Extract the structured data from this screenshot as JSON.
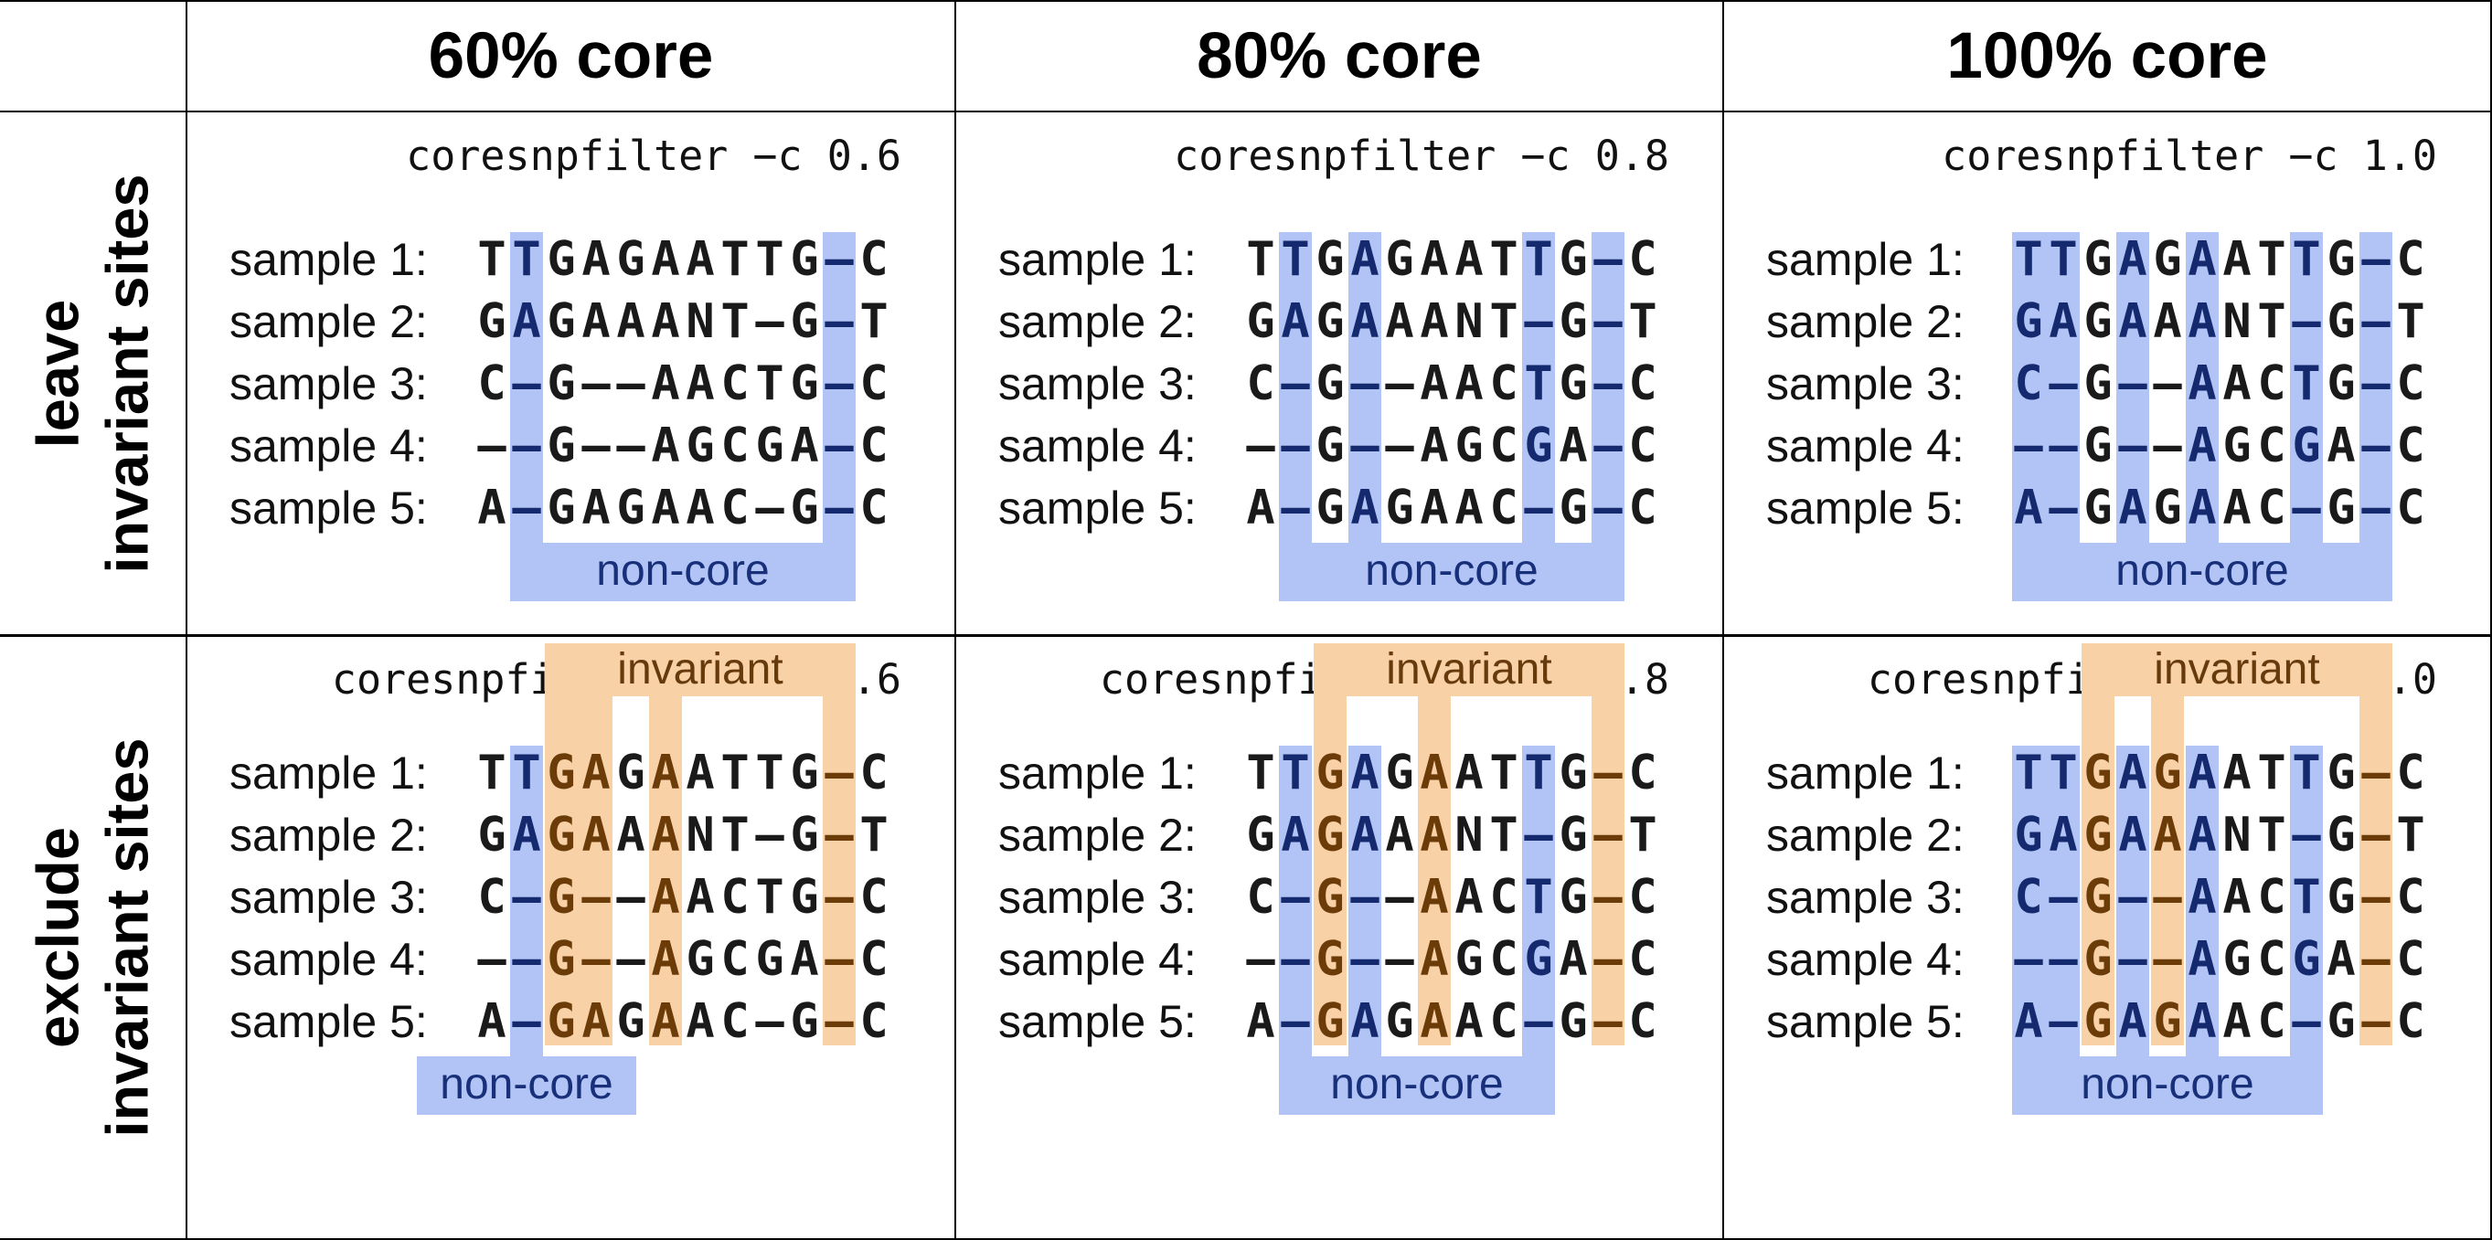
{
  "column_headers": [
    "60% core",
    "80% core",
    "100% core"
  ],
  "row_headers": [
    {
      "line1": "leave",
      "line2": "invariant sites"
    },
    {
      "line1": "exclude",
      "line2": "invariant sites"
    }
  ],
  "sample_labels": [
    "sample 1:",
    "sample 2:",
    "sample 3:",
    "sample 4:",
    "sample 5:"
  ],
  "alignment": [
    "TTGAGAATTG-C",
    "GAGAAANT-G-T",
    "C-G--AACTG-C",
    "--G--AGCGA-C",
    "A-GAGAAC-G-C"
  ],
  "labels": {
    "non_core": "non-core",
    "invariant": "invariant"
  },
  "colors": {
    "core_highlight": "#b2c4f6",
    "invariant_highlight": "#f8d1a7",
    "core_text": "#14296e",
    "invariant_text": "#6b3b08"
  },
  "panels": [
    {
      "command": "coresnpfilter −c 0.6",
      "kept_columns": [
        1,
        10
      ],
      "invariant_columns": [],
      "removed_columns": [
        0,
        2,
        3,
        4,
        5,
        6,
        7,
        8,
        9,
        11
      ],
      "noncore_label": "non-core"
    },
    {
      "command": "coresnpfilter −c 0.8",
      "kept_columns": [
        1,
        3,
        8,
        10
      ],
      "invariant_columns": [],
      "removed_columns": [
        0,
        2,
        4,
        5,
        6,
        7,
        9,
        11
      ],
      "noncore_label": "non-core"
    },
    {
      "command": "coresnpfilter −c 1.0",
      "kept_columns": [
        0,
        1,
        3,
        5,
        8,
        10
      ],
      "invariant_columns": [],
      "removed_columns": [
        2,
        4,
        6,
        7,
        9,
        11
      ],
      "noncore_label": "non-core"
    },
    {
      "command": "coresnpfilter −e −c 0.6",
      "kept_columns": [
        1
      ],
      "invariant_columns": [
        2,
        3,
        5,
        10
      ],
      "removed_columns": [
        0,
        4,
        6,
        7,
        8,
        9,
        11
      ],
      "noncore_label": "non-core",
      "invariant_label": "invariant"
    },
    {
      "command": "coresnpfilter −e −c 0.8",
      "kept_columns": [
        1,
        3,
        8
      ],
      "invariant_columns": [
        2,
        5,
        10
      ],
      "removed_columns": [
        0,
        4,
        6,
        7,
        9,
        11
      ],
      "noncore_label": "non-core",
      "invariant_label": "invariant"
    },
    {
      "command": "coresnpfilter −e −c 1.0",
      "kept_columns": [
        0,
        1,
        3,
        5,
        8
      ],
      "invariant_columns": [
        2,
        4,
        10
      ],
      "removed_columns": [
        6,
        7,
        9,
        11
      ],
      "noncore_label": "non-core",
      "invariant_label": "invariant"
    }
  ]
}
